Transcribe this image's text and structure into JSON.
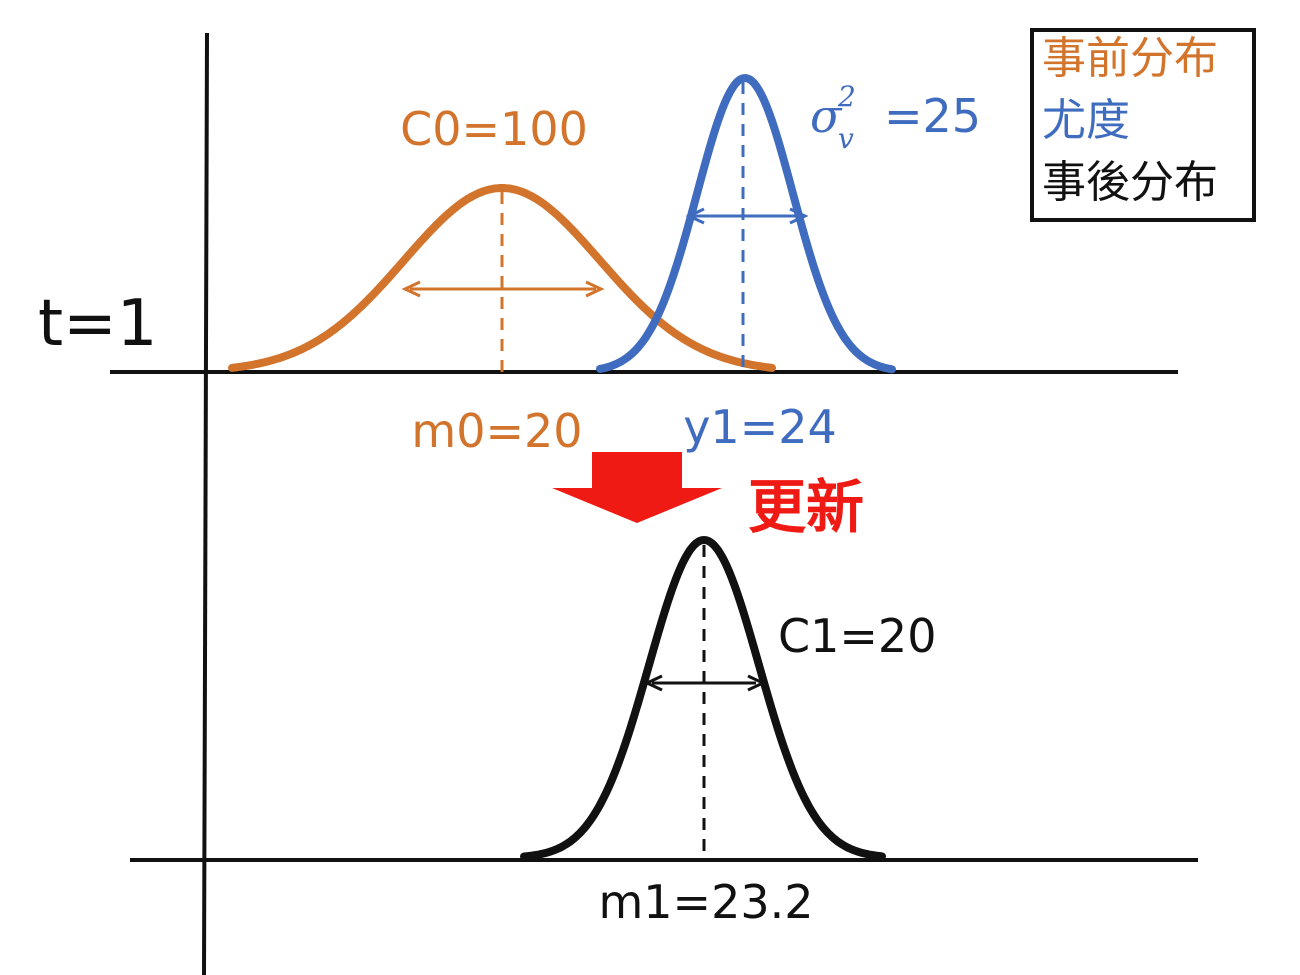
{
  "colors": {
    "prior": "#d2742c",
    "likelihood": "#3f6cbf",
    "posterior": "#111111",
    "update": "#f01a14",
    "axis": "#111111"
  },
  "time_label": "t=1",
  "legend": {
    "prior": "事前分布",
    "likelihood": "尤度",
    "posterior": "事後分布"
  },
  "prior": {
    "variance_label": "C0=100",
    "mean_label": "m0=20",
    "mean": 20,
    "variance": 100
  },
  "likelihood": {
    "sigma_symbol": "σ",
    "sigma_sup": "2",
    "sigma_sub": "v",
    "variance_value": "=25",
    "obs_label": "y1=24",
    "obs": 24,
    "variance": 25
  },
  "update_label": "更新",
  "posterior": {
    "variance_label": "C1=20",
    "mean_label": "m1=23.2",
    "mean": 23.2,
    "variance": 20
  }
}
